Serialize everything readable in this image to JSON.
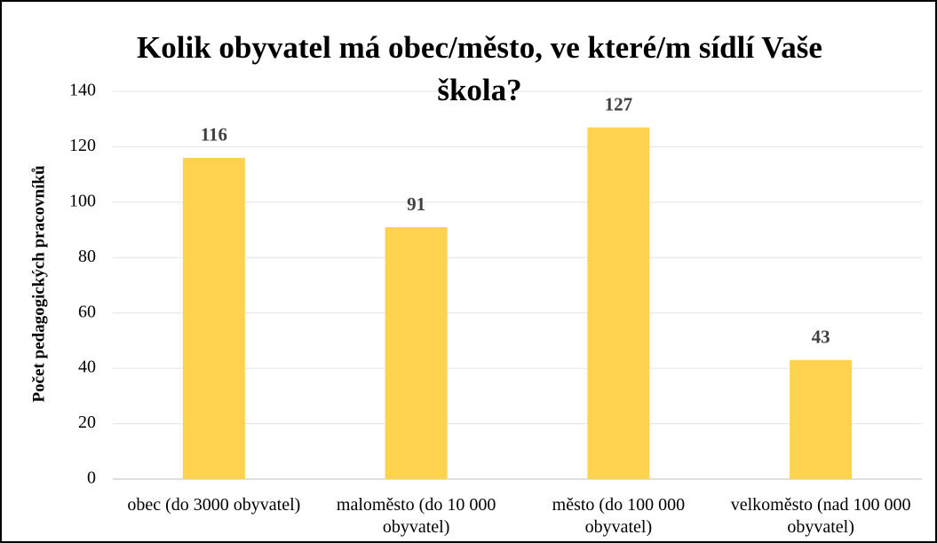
{
  "chart_data": {
    "type": "bar",
    "title": "Kolik obyvatel má obec/město, ve které/m sídlí Vaše škola?",
    "y_label": "Počet pedagogických pracovníků",
    "categories": [
      "obec (do 3000 obyvatel)",
      "maloměsto (do 10 000 obyvatel)",
      "město (do 100 000 obyvatel)",
      "velkoměsto (nad 100 000 obyvatel)"
    ],
    "values": [
      116,
      91,
      127,
      43
    ],
    "color": "#ffd24f",
    "ylim": [
      0,
      140
    ],
    "yticks": [
      0,
      20,
      40,
      60,
      80,
      100,
      120,
      140
    ],
    "grid": true
  }
}
